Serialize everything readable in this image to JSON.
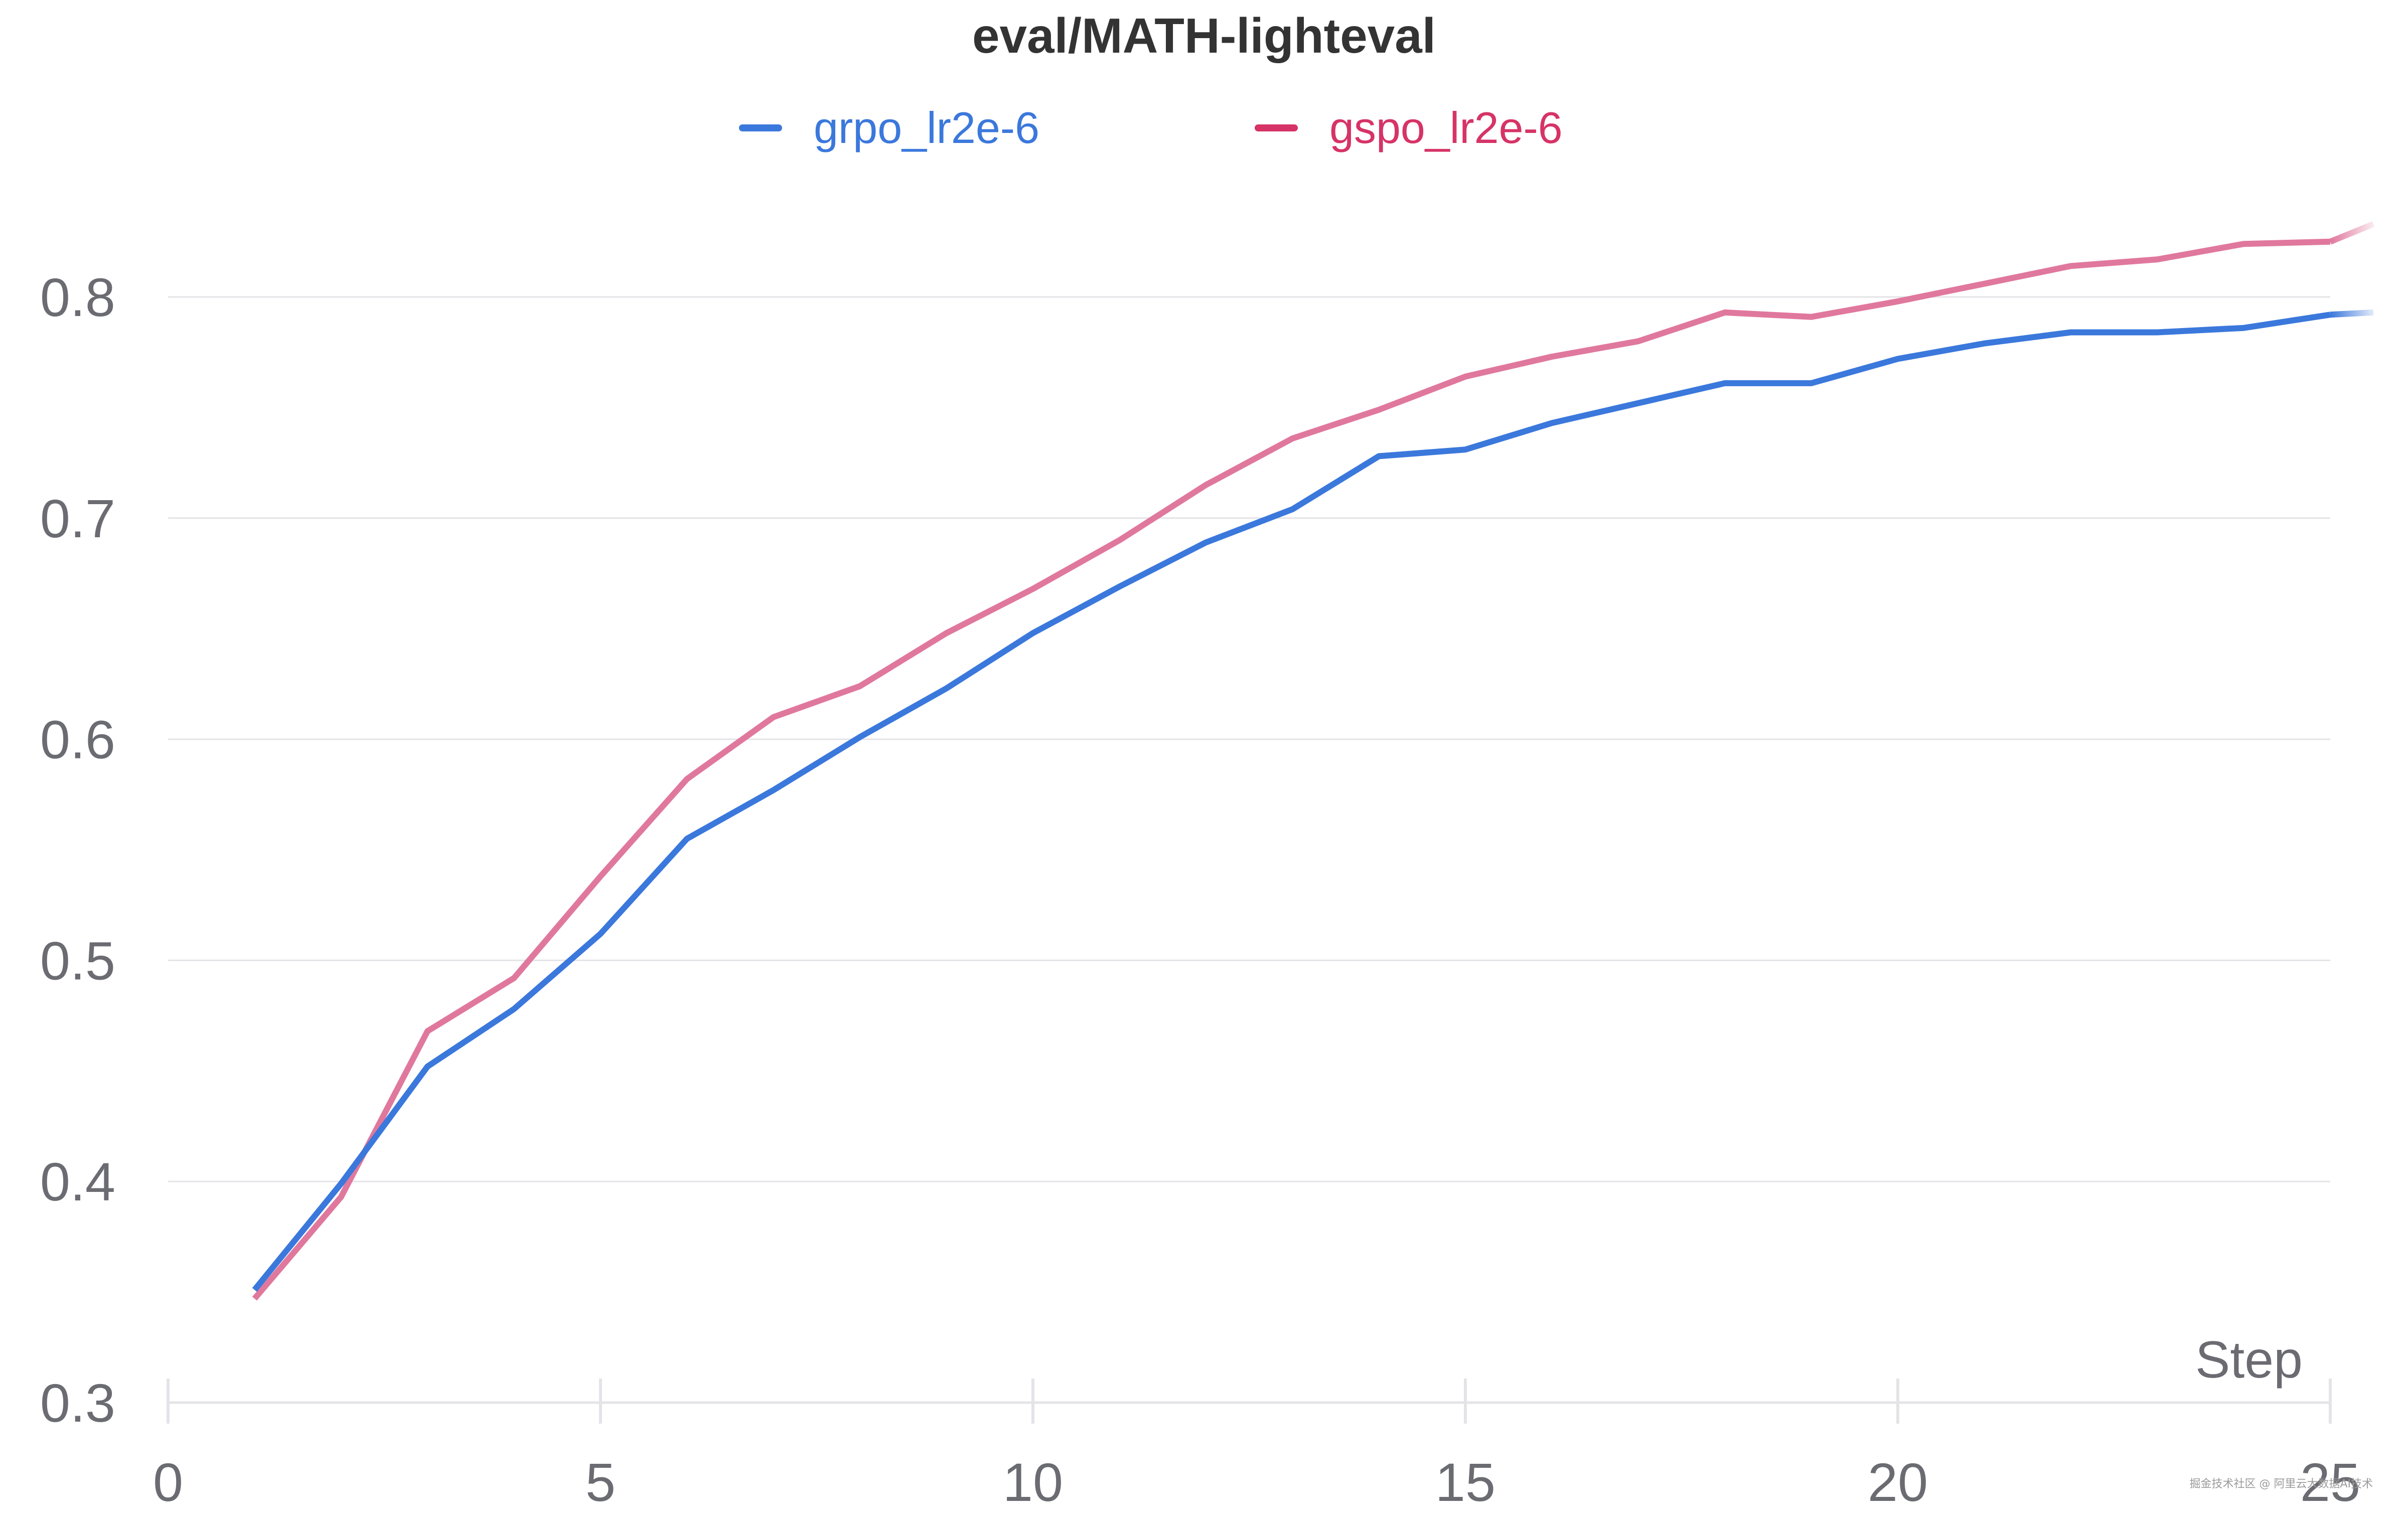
{
  "chart_data": {
    "type": "line",
    "title": "eval/MATH-lighteval",
    "xlabel": "Step",
    "ylabel": "",
    "xlim": [
      0,
      25
    ],
    "ylim": [
      0.3,
      0.8
    ],
    "x_ticks": [
      "0",
      "5",
      "10",
      "15",
      "20",
      "25"
    ],
    "y_ticks": [
      "0.3",
      "0.4",
      "0.5",
      "0.6",
      "0.7",
      "0.8"
    ],
    "grid": true,
    "legend_position": "top-center",
    "x": [
      1,
      2,
      3,
      4,
      5,
      6,
      7,
      8,
      9,
      10,
      11,
      12,
      13,
      14,
      15,
      16,
      17,
      18,
      19,
      20,
      21,
      22,
      23,
      24,
      25
    ],
    "series": [
      {
        "name": "grpo_lr2e-6",
        "color": "#3b78dc",
        "values": [
          0.351,
          0.399,
          0.452,
          0.478,
          0.512,
          0.555,
          0.577,
          0.601,
          0.623,
          0.648,
          0.669,
          0.689,
          0.704,
          0.728,
          0.731,
          0.743,
          0.752,
          0.761,
          0.761,
          0.772,
          0.779,
          0.784,
          0.784,
          0.786,
          0.792
        ]
      },
      {
        "name": "gspo_lr2e-6",
        "color": "#e0789d",
        "legend_color": "#d63366",
        "values": [
          0.347,
          0.393,
          0.468,
          0.492,
          0.538,
          0.582,
          0.61,
          0.624,
          0.648,
          0.668,
          0.69,
          0.715,
          0.736,
          0.749,
          0.764,
          0.773,
          0.78,
          0.793,
          0.791,
          0.798,
          0.806,
          0.814,
          0.817,
          0.824,
          0.825
        ]
      }
    ],
    "tail_extension": {
      "x": 25.5,
      "values": [
        0.793,
        0.833
      ]
    }
  },
  "watermark": "掘金技术社区 @ 阿里云大数据AI技术"
}
